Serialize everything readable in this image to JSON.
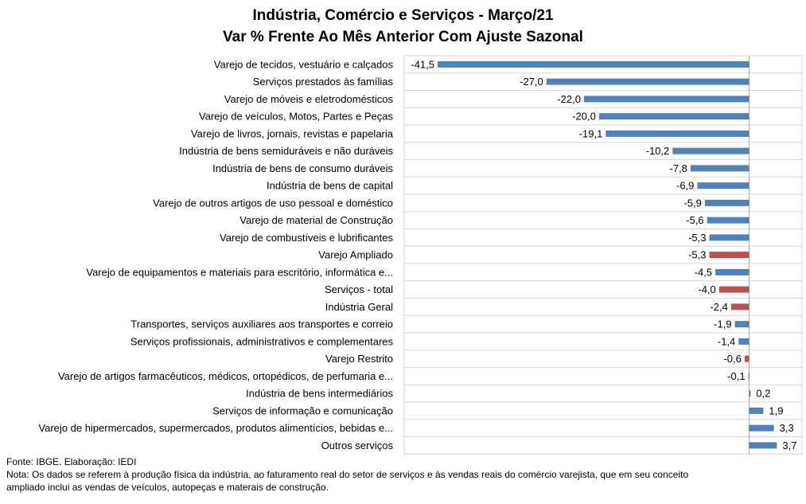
{
  "chart_data": {
    "type": "bar",
    "orientation": "horizontal",
    "title": "Indústria, Comércio e Serviços - Março/21",
    "subtitle": "Var % Frente Ao Mês Anterior Com Ajuste Sazonal",
    "categories": [
      "Varejo de tecidos, vestuário e calçados",
      "Serviços prestados às famílias",
      "Varejo de móveis e eletrodomésticos",
      "Varejo de veículos, Motos, Partes e Peças",
      "Varejo de livros, jornais, revistas e papelaria",
      "Indústria de bens semiduráveis e não duráveis",
      "Indústria de bens de consumo duráveis",
      "Indústria de bens de capital",
      "Varejo de outros artigos de uso pessoal e doméstico",
      "Varejo de material de Construção",
      "Varejo de combustíveis e lubrificantes",
      "Varejo Ampliado",
      "Varejo de equipamentos e materiais para escritório, informática e...",
      "Serviços - total",
      "Indústria Geral",
      "Transportes, serviços auxiliares aos transportes e correio",
      "Serviços profissionais, administrativos e complementares",
      "Varejo Restrito",
      "Varejo de artigos farmacêuticos, médicos, ortopédicos, de perfumaria e...",
      "Indústria de bens intermediários",
      "Serviços de informação e comunicação",
      "Varejo de hipermercados, supermercados, produtos alimentícios, bebidas e...",
      "Outros serviços"
    ],
    "values": [
      -41.5,
      -27.0,
      -22.0,
      -20.0,
      -19.1,
      -10.2,
      -7.8,
      -6.9,
      -5.9,
      -5.6,
      -5.3,
      -5.3,
      -4.5,
      -4.0,
      -2.4,
      -1.9,
      -1.4,
      -0.6,
      -0.1,
      0.2,
      1.9,
      3.3,
      3.7
    ],
    "value_labels": [
      "-41,5",
      "-27,0",
      "-22,0",
      "-20,0",
      "-19,1",
      "-10,2",
      "-7,8",
      "-6,9",
      "-5,9",
      "-5,6",
      "-5,3",
      "-5,3",
      "-4,5",
      "-4,0",
      "-2,4",
      "-1,9",
      "-1,4",
      "-0,6",
      "-0,1",
      "0,2",
      "1,9",
      "3,3",
      "3,7"
    ],
    "highlighted": [
      false,
      false,
      false,
      false,
      false,
      false,
      false,
      false,
      false,
      false,
      false,
      true,
      false,
      true,
      true,
      false,
      false,
      true,
      false,
      false,
      false,
      false,
      false
    ],
    "xlim": [
      -41.5,
      6.2
    ],
    "grid": true,
    "legend": "none",
    "colors": {
      "bar": "#4F81BD",
      "highlight": "#C0504D",
      "grid": "#D9D9D9",
      "axis": "#A6A6A6"
    }
  },
  "footer": {
    "source": "Fonte: IBGE. Elaboração: IEDI",
    "note_line1": "Nota: Os dados se referem à produção física da indústria, ao faturamento real do setor de serviços e às vendas reais do comércio varejista, que em seu conceito",
    "note_line2": "ampliado inclui as vendas de veículos, autopeças e materais de construção."
  }
}
